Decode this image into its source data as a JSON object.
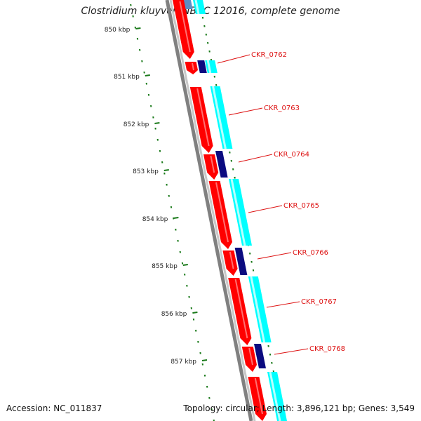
{
  "title": "Clostridium kluyveri NBRC 12016, complete genome",
  "footer": {
    "accession": "Accession: NC_011837",
    "summary": "Topology: circular; Length: 3,896,121 bp; Genes: 3,549"
  },
  "colors": {
    "backbone": "#808080",
    "gc_ticks": "#1a7a1a",
    "cds_forward": "#ff0000",
    "gene_labels": "#dd1111",
    "ring_cyan": "#00ffff",
    "ring_navy": "#0b0b80",
    "ring_steelblue": "#5d8ec4"
  },
  "scale_labels": [
    "850 kbp",
    "851 kbp",
    "852 kbp",
    "853 kbp",
    "854 kbp",
    "855 kbp",
    "856 kbp",
    "857 kbp"
  ],
  "genes": [
    {
      "id": "CKR_0762"
    },
    {
      "id": "CKR_0763"
    },
    {
      "id": "CKR_0764"
    },
    {
      "id": "CKR_0765"
    },
    {
      "id": "CKR_0766"
    },
    {
      "id": "CKR_0767"
    },
    {
      "id": "CKR_0768"
    }
  ]
}
